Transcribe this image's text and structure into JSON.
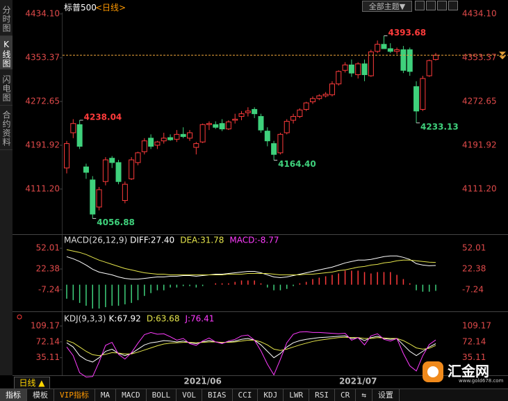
{
  "toolbar": {
    "sidebar": [
      "分时图",
      "K线图",
      "闪电图",
      "合约资料"
    ],
    "symbol": "标普500",
    "period": "<日线>",
    "theme_button": "全部主题▼"
  },
  "chart_data": [
    {
      "type": "candlestick",
      "categories": [
        null,
        null,
        null,
        null,
        null,
        null,
        null,
        null,
        null,
        null,
        null,
        null,
        null,
        null,
        null,
        null,
        null,
        null,
        null,
        null,
        null,
        "2021/06",
        null,
        null,
        null,
        null,
        null,
        null,
        null,
        null,
        null,
        null,
        null,
        null,
        null,
        null,
        null,
        null,
        null,
        null,
        null,
        null,
        null,
        null,
        null,
        "2021/07",
        null,
        null,
        null,
        null,
        null,
        null,
        null,
        null,
        null,
        null,
        null,
        null
      ],
      "ohlc": [
        [
          4150,
          4200,
          4140,
          4195
        ],
        [
          4215,
          4240,
          4205,
          4232
        ],
        [
          4230,
          4238.04,
          4185,
          4190
        ],
        [
          4152,
          4158,
          4130,
          4142
        ],
        [
          4128,
          4135,
          4056.88,
          4065
        ],
        [
          4078,
          4115,
          4072,
          4110
        ],
        [
          4125,
          4170,
          4118,
          4165
        ],
        [
          4168,
          4172,
          4150,
          4160
        ],
        [
          4160,
          4165,
          4120,
          4125
        ],
        [
          4090,
          4125,
          4085,
          4120
        ],
        [
          4130,
          4170,
          4128,
          4165
        ],
        [
          4160,
          4180,
          4155,
          4178
        ],
        [
          4180,
          4205,
          4175,
          4200
        ],
        [
          4205,
          4212,
          4185,
          4190
        ],
        [
          4192,
          4200,
          4185,
          4198
        ],
        [
          4200,
          4215,
          4195,
          4205
        ],
        [
          4206,
          4212,
          4200,
          4202
        ],
        [
          4203,
          4220,
          4198,
          4212
        ],
        [
          4212,
          4225,
          4205,
          4208
        ],
        [
          4205,
          4220,
          4200,
          4215
        ],
        [
          4188,
          4198,
          4175,
          4195
        ],
        [
          4198,
          4232,
          4196,
          4230
        ],
        [
          4230,
          4236,
          4220,
          4232
        ],
        [
          4230,
          4236,
          4222,
          4225
        ],
        [
          4232,
          4240,
          4218,
          4222
        ],
        [
          4222,
          4238,
          4220,
          4235
        ],
        [
          4238,
          4250,
          4232,
          4240
        ],
        [
          4245,
          4255,
          4238,
          4250
        ],
        [
          4252,
          4262,
          4245,
          4255
        ],
        [
          4258,
          4262,
          4242,
          4250
        ],
        [
          4245,
          4250,
          4215,
          4220
        ],
        [
          4218,
          4225,
          4190,
          4200
        ],
        [
          4195,
          4200,
          4164.4,
          4175
        ],
        [
          4178,
          4215,
          4175,
          4212
        ],
        [
          4215,
          4240,
          4212,
          4236
        ],
        [
          4238,
          4250,
          4232,
          4245
        ],
        [
          4245,
          4260,
          4242,
          4257
        ],
        [
          4258,
          4272,
          4255,
          4270
        ],
        [
          4272,
          4282,
          4268,
          4278
        ],
        [
          4278,
          4286,
          4275,
          4283
        ],
        [
          4283,
          4290,
          4280,
          4286
        ],
        [
          4285,
          4310,
          4282,
          4305
        ],
        [
          4305,
          4330,
          4302,
          4328
        ],
        [
          4330,
          4345,
          4326,
          4340
        ],
        [
          4340,
          4350,
          4318,
          4325
        ],
        [
          4322,
          4345,
          4315,
          4342
        ],
        [
          4342,
          4350,
          4310,
          4322
        ],
        [
          4320,
          4368,
          4318,
          4364
        ],
        [
          4365,
          4385,
          4362,
          4378
        ],
        [
          4378,
          4393.68,
          4370,
          4370
        ],
        [
          4370,
          4380,
          4362,
          4365
        ],
        [
          4365,
          4372,
          4360,
          4368
        ],
        [
          4368,
          4375,
          4325,
          4330
        ],
        [
          4368,
          4372,
          4320,
          4328
        ],
        [
          4300,
          4310,
          4233.13,
          4255
        ],
        [
          4258,
          4320,
          4255,
          4315
        ],
        [
          4320,
          4350,
          4318,
          4348
        ],
        [
          4350,
          4362,
          4348,
          4358
        ]
      ],
      "up_color": "#ff3b3b",
      "down_color": "#3fd17c",
      "ylim": [
        4043.3,
        4453.3
      ],
      "yticks": [
        {
          "value": 4434.1,
          "label": "4434.10"
        },
        4353.37,
        4272.65,
        4191.92,
        {
          "value": 4111.2,
          "label": "4111.20"
        }
      ],
      "annotations": [
        {
          "value": 4238.04,
          "label": "4238.04"
        },
        {
          "value": 4056.88,
          "label": "4056.88"
        },
        {
          "value": 4164.4,
          "label": "4164.40"
        },
        {
          "value": 4393.68,
          "label": "4393.68"
        },
        {
          "value": 4233.13,
          "label": "4233.13"
        }
      ],
      "last_price_line": true,
      "last_price_color": "#e8a23a"
    },
    {
      "type": "line",
      "title": "MACD(26,12,9)",
      "ylim": [
        -39,
        68
      ],
      "yticks": [
        52.01,
        22.38,
        -7.24
      ],
      "series": [
        {
          "name": "DIFF:27.40",
          "color": "#ffffff",
          "values": [
            40,
            37,
            33,
            28,
            22,
            18,
            16,
            14,
            11,
            9,
            8,
            8,
            9,
            10,
            11,
            11,
            12,
            12,
            13,
            13,
            12,
            13,
            14,
            15,
            15,
            16,
            17,
            18,
            19,
            19,
            17,
            14,
            11,
            10,
            11,
            13,
            15,
            17,
            19,
            21,
            23,
            25,
            28,
            31,
            33,
            35,
            35,
            36,
            38,
            40,
            41,
            41,
            39,
            36,
            30,
            28,
            27,
            27.4
          ]
        },
        {
          "name": "DEA:31.78",
          "color": "#e6e64c",
          "values": [
            50,
            48,
            46,
            43,
            39,
            35,
            32,
            29,
            26,
            23,
            21,
            19,
            17,
            16,
            15,
            15,
            14,
            14,
            14,
            14,
            14,
            14,
            14,
            14,
            14,
            15,
            15,
            15,
            16,
            16,
            16,
            16,
            15,
            14,
            14,
            14,
            14,
            15,
            15,
            16,
            17,
            18,
            20,
            21,
            23,
            25,
            26,
            28,
            29,
            31,
            32,
            34,
            35,
            35,
            34,
            33,
            32,
            31.78
          ]
        },
        {
          "name": "MACD:-8.77",
          "color": "#ff3cff",
          "style": "bar",
          "up_color": "#ff3b3b",
          "down_color": "#3fd17c",
          "values": [
            -20,
            -22,
            -26,
            -30,
            -34,
            -34,
            -32,
            -30,
            -30,
            -28,
            -26,
            -22,
            -16,
            -12,
            -8,
            -8,
            -4,
            -4,
            -2,
            -2,
            -4,
            -2,
            0,
            2,
            2,
            2,
            4,
            6,
            6,
            6,
            2,
            -4,
            -8,
            -8,
            -6,
            -2,
            2,
            4,
            8,
            10,
            12,
            14,
            16,
            20,
            20,
            20,
            18,
            16,
            18,
            18,
            18,
            14,
            8,
            2,
            -8,
            -10,
            -10,
            -8.77
          ]
        }
      ]
    },
    {
      "type": "line",
      "title": "KDJ(9,3,3)",
      "ylim": [
        -6,
        132
      ],
      "yticks": [
        109.17,
        72.14,
        35.11
      ],
      "series": [
        {
          "name": "K:67.92",
          "color": "#ffffff",
          "values": [
            70,
            60,
            40,
            30,
            25,
            35,
            50,
            55,
            45,
            40,
            45,
            55,
            65,
            70,
            72,
            75,
            74,
            72,
            74,
            70,
            68,
            72,
            75,
            72,
            70,
            72,
            74,
            78,
            80,
            76,
            65,
            50,
            35,
            45,
            60,
            70,
            75,
            78,
            80,
            82,
            83,
            84,
            85,
            86,
            80,
            82,
            75,
            82,
            85,
            80,
            78,
            80,
            65,
            50,
            40,
            50,
            60,
            67.92
          ]
        },
        {
          "name": "D:63.68",
          "color": "#e6e64c",
          "values": [
            75,
            70,
            60,
            50,
            42,
            40,
            43,
            47,
            46,
            44,
            44,
            48,
            53,
            58,
            63,
            67,
            69,
            70,
            71,
            71,
            70,
            71,
            72,
            72,
            71,
            71,
            72,
            74,
            76,
            76,
            72,
            65,
            55,
            52,
            55,
            60,
            65,
            69,
            73,
            76,
            78,
            80,
            82,
            83,
            82,
            82,
            80,
            80,
            82,
            81,
            80,
            80,
            75,
            67,
            58,
            55,
            57,
            63.68
          ]
        },
        {
          "name": "J:76.41",
          "color": "#ff3cff",
          "values": [
            60,
            40,
            0,
            -10,
            -9,
            25,
            64,
            71,
            43,
            32,
            47,
            69,
            89,
            94,
            90,
            91,
            84,
            76,
            80,
            68,
            64,
            74,
            81,
            72,
            68,
            74,
            78,
            86,
            88,
            76,
            51,
            20,
            -5,
            31,
            70,
            90,
            95,
            96,
            94,
            94,
            93,
            92,
            91,
            92,
            76,
            82,
            65,
            86,
            91,
            78,
            74,
            80,
            45,
            16,
            4,
            40,
            66,
            76.41
          ]
        }
      ]
    }
  ],
  "footer": {
    "period_button": "日线 ▲",
    "tabs": [
      "指标",
      "模板",
      "VIP指标",
      "MA",
      "MACD",
      "BOLL",
      "VOL",
      "BIAS",
      "CCI",
      "KDJ",
      "LWR",
      "RSI",
      "CR",
      "⇆",
      "设置"
    ],
    "logo": "汇金网",
    "logo_url": "www.gold678.com"
  }
}
